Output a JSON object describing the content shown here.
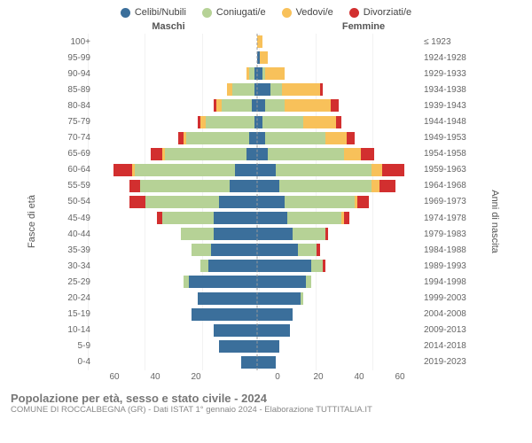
{
  "type": "population-pyramid",
  "legend": [
    {
      "label": "Celibi/Nubili",
      "color": "#3b6f9b"
    },
    {
      "label": "Coniugati/e",
      "color": "#b6d296"
    },
    {
      "label": "Vedovi/e",
      "color": "#f8c15a"
    },
    {
      "label": "Divorziati/e",
      "color": "#d22f2f"
    }
  ],
  "headers": {
    "male": "Maschi",
    "female": "Femmine"
  },
  "axis_titles": {
    "left": "Fasce di età",
    "right": "Anni di nascita"
  },
  "x_ticks_left": [
    "60",
    "40",
    "20",
    ""
  ],
  "x_ticks_right": [
    "0",
    "20",
    "40",
    "60"
  ],
  "x_max": 60,
  "colors": {
    "grid": "#eeeeee",
    "centerline": "#999999",
    "bg": "#ffffff"
  },
  "font": {
    "tick": 10,
    "legend": 11,
    "title": 13,
    "sub": 9.5
  },
  "footer": {
    "title": "Popolazione per età, sesso e stato civile - 2024",
    "sub": "COMUNE DI ROCCALBEGNA (GR) - Dati ISTAT 1° gennaio 2024 - Elaborazione TUTTITALIA.IT"
  },
  "rows": [
    {
      "age": "100+",
      "birth": "≤ 1923",
      "m": [
        0,
        0,
        0,
        0
      ],
      "f": [
        0,
        0,
        2,
        0
      ]
    },
    {
      "age": "95-99",
      "birth": "1924-1928",
      "m": [
        0,
        0,
        0,
        0
      ],
      "f": [
        1,
        0,
        3,
        0
      ]
    },
    {
      "age": "90-94",
      "birth": "1929-1933",
      "m": [
        1,
        2,
        1,
        0
      ],
      "f": [
        2,
        1,
        7,
        0
      ]
    },
    {
      "age": "85-89",
      "birth": "1934-1938",
      "m": [
        1,
        8,
        2,
        0
      ],
      "f": [
        5,
        4,
        14,
        1
      ]
    },
    {
      "age": "80-84",
      "birth": "1939-1943",
      "m": [
        2,
        11,
        2,
        1
      ],
      "f": [
        3,
        7,
        17,
        3
      ]
    },
    {
      "age": "75-79",
      "birth": "1944-1948",
      "m": [
        1,
        18,
        2,
        1
      ],
      "f": [
        2,
        15,
        12,
        2
      ]
    },
    {
      "age": "70-74",
      "birth": "1949-1953",
      "m": [
        3,
        23,
        1,
        2
      ],
      "f": [
        3,
        22,
        8,
        3
      ]
    },
    {
      "age": "65-69",
      "birth": "1954-1958",
      "m": [
        4,
        30,
        1,
        4
      ],
      "f": [
        4,
        28,
        6,
        5
      ]
    },
    {
      "age": "60-64",
      "birth": "1959-1963",
      "m": [
        8,
        37,
        1,
        7
      ],
      "f": [
        7,
        35,
        4,
        8
      ]
    },
    {
      "age": "55-59",
      "birth": "1964-1968",
      "m": [
        10,
        33,
        0,
        4
      ],
      "f": [
        8,
        34,
        3,
        6
      ]
    },
    {
      "age": "50-54",
      "birth": "1969-1973",
      "m": [
        14,
        27,
        0,
        6
      ],
      "f": [
        10,
        26,
        1,
        4
      ]
    },
    {
      "age": "45-49",
      "birth": "1974-1978",
      "m": [
        16,
        19,
        0,
        2
      ],
      "f": [
        11,
        20,
        1,
        2
      ]
    },
    {
      "age": "40-44",
      "birth": "1979-1983",
      "m": [
        16,
        12,
        0,
        0
      ],
      "f": [
        13,
        12,
        0,
        1
      ]
    },
    {
      "age": "35-39",
      "birth": "1984-1988",
      "m": [
        17,
        7,
        0,
        0
      ],
      "f": [
        15,
        7,
        0,
        1
      ]
    },
    {
      "age": "30-34",
      "birth": "1989-1993",
      "m": [
        18,
        3,
        0,
        0
      ],
      "f": [
        20,
        4,
        0,
        1
      ]
    },
    {
      "age": "25-29",
      "birth": "1994-1998",
      "m": [
        25,
        2,
        0,
        0
      ],
      "f": [
        18,
        2,
        0,
        0
      ]
    },
    {
      "age": "20-24",
      "birth": "1999-2003",
      "m": [
        22,
        0,
        0,
        0
      ],
      "f": [
        16,
        1,
        0,
        0
      ]
    },
    {
      "age": "15-19",
      "birth": "2004-2008",
      "m": [
        24,
        0,
        0,
        0
      ],
      "f": [
        13,
        0,
        0,
        0
      ]
    },
    {
      "age": "10-14",
      "birth": "2009-2013",
      "m": [
        16,
        0,
        0,
        0
      ],
      "f": [
        12,
        0,
        0,
        0
      ]
    },
    {
      "age": "5-9",
      "birth": "2014-2018",
      "m": [
        14,
        0,
        0,
        0
      ],
      "f": [
        8,
        0,
        0,
        0
      ]
    },
    {
      "age": "0-4",
      "birth": "2019-2023",
      "m": [
        6,
        0,
        0,
        0
      ],
      "f": [
        7,
        0,
        0,
        0
      ]
    }
  ]
}
